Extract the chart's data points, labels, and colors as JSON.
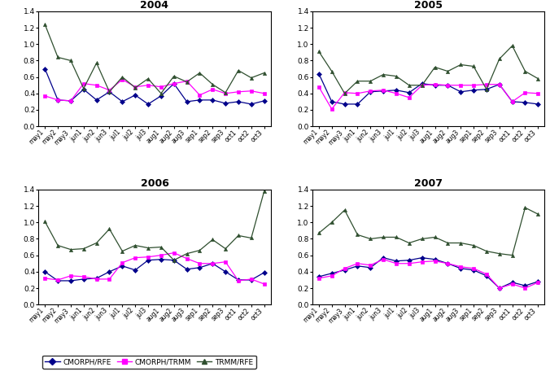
{
  "x_labels": [
    "may1",
    "may2",
    "may3",
    "jun1",
    "jun2",
    "jun3",
    "jul1",
    "jul2",
    "jul3",
    "aug1",
    "aug2",
    "aug3",
    "sep1",
    "sep2",
    "sep3",
    "oct1",
    "oct2",
    "oct3"
  ],
  "years": [
    "2004",
    "2005",
    "2006",
    "2007"
  ],
  "data": {
    "2004": {
      "CMORPH/RFE": [
        0.7,
        0.32,
        0.31,
        0.45,
        0.32,
        0.42,
        0.3,
        0.38,
        0.27,
        0.37,
        0.52,
        0.3,
        0.32,
        0.32,
        0.28,
        0.3,
        0.27,
        0.31
      ],
      "CMORPH/TRMM": [
        0.37,
        0.32,
        0.31,
        0.52,
        0.5,
        0.44,
        0.57,
        0.48,
        0.5,
        0.48,
        0.52,
        0.55,
        0.38,
        0.45,
        0.4,
        0.42,
        0.43,
        0.4
      ],
      "TRMM/RFE": [
        1.24,
        0.84,
        0.8,
        0.46,
        0.77,
        0.42,
        0.6,
        0.47,
        0.58,
        0.4,
        0.61,
        0.54,
        0.65,
        0.51,
        0.41,
        0.68,
        0.59,
        0.65
      ]
    },
    "2005": {
      "CMORPH/RFE": [
        0.64,
        0.3,
        0.27,
        0.27,
        0.42,
        0.43,
        0.44,
        0.41,
        0.52,
        0.5,
        0.5,
        0.42,
        0.44,
        0.45,
        0.51,
        0.3,
        0.29,
        0.27
      ],
      "CMORPH/TRMM": [
        0.48,
        0.21,
        0.41,
        0.4,
        0.43,
        0.44,
        0.4,
        0.35,
        0.5,
        0.51,
        0.5,
        0.5,
        0.5,
        0.51,
        0.51,
        0.3,
        0.41,
        0.4
      ],
      "TRMM/RFE": [
        0.91,
        0.67,
        0.4,
        0.55,
        0.55,
        0.63,
        0.61,
        0.5,
        0.5,
        0.72,
        0.67,
        0.75,
        0.73,
        0.45,
        0.82,
        0.98,
        0.67,
        0.58
      ]
    },
    "2006": {
      "CMORPH/RFE": [
        0.4,
        0.29,
        0.29,
        0.31,
        0.32,
        0.4,
        0.47,
        0.42,
        0.54,
        0.55,
        0.54,
        0.43,
        0.45,
        0.5,
        0.4,
        0.3,
        0.3,
        0.39
      ],
      "CMORPH/TRMM": [
        0.32,
        0.3,
        0.35,
        0.34,
        0.31,
        0.31,
        0.51,
        0.57,
        0.58,
        0.6,
        0.63,
        0.56,
        0.5,
        0.5,
        0.52,
        0.29,
        0.31,
        0.25
      ],
      "TRMM/RFE": [
        1.01,
        0.72,
        0.67,
        0.68,
        0.75,
        0.92,
        0.65,
        0.72,
        0.69,
        0.7,
        0.54,
        0.62,
        0.66,
        0.79,
        0.68,
        0.84,
        0.81,
        1.38
      ]
    },
    "2007": {
      "CMORPH/RFE": [
        0.34,
        0.38,
        0.42,
        0.47,
        0.45,
        0.57,
        0.53,
        0.54,
        0.57,
        0.55,
        0.5,
        0.44,
        0.42,
        0.35,
        0.2,
        0.27,
        0.23,
        0.28
      ],
      "CMORPH/TRMM": [
        0.32,
        0.35,
        0.44,
        0.5,
        0.48,
        0.55,
        0.5,
        0.5,
        0.52,
        0.53,
        0.5,
        0.46,
        0.44,
        0.37,
        0.2,
        0.25,
        0.2,
        0.27
      ],
      "TRMM/RFE": [
        0.87,
        1.0,
        1.15,
        0.85,
        0.8,
        0.82,
        0.82,
        0.75,
        0.8,
        0.82,
        0.75,
        0.75,
        0.72,
        0.65,
        0.62,
        0.6,
        1.18,
        1.1
      ]
    }
  },
  "colors": {
    "CMORPH/RFE": "#00008B",
    "CMORPH/TRMM": "#FF00FF",
    "TRMM/RFE": "#2F4F2F"
  },
  "markers": {
    "CMORPH/RFE": "D",
    "CMORPH/TRMM": "s",
    "TRMM/RFE": "^"
  },
  "ylim": [
    0,
    1.4
  ],
  "yticks": [
    0,
    0.2,
    0.4,
    0.6,
    0.8,
    1.0,
    1.2,
    1.4
  ],
  "background_color": "#ffffff",
  "title_fontsize": 9,
  "legend_labels": [
    "CMORPH/RFE",
    "CMORPH/TRMM",
    "TRMM/RFE"
  ]
}
